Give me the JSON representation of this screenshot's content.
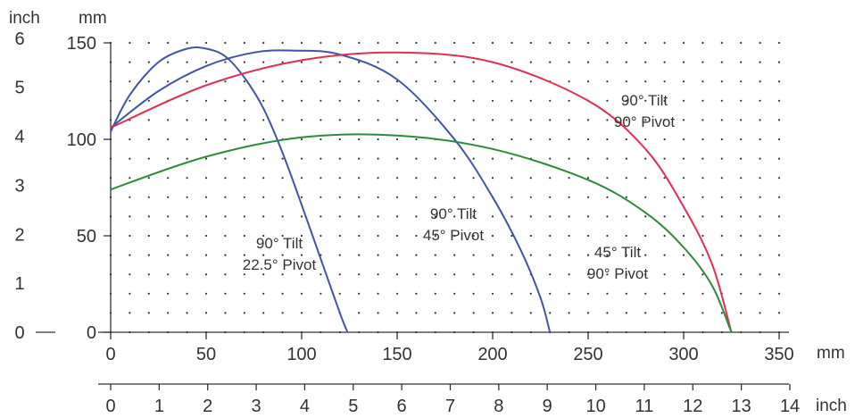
{
  "chart_data": {
    "type": "line",
    "grid": "dotted",
    "axes": {
      "y_inch": {
        "label": "inch",
        "ticks": [
          0,
          1,
          2,
          3,
          4,
          5,
          6
        ],
        "range": [
          0,
          6
        ]
      },
      "y_mm": {
        "label": "mm",
        "ticks": [
          0,
          50,
          100,
          150
        ],
        "range": [
          0,
          150
        ]
      },
      "x_mm": {
        "label": "mm",
        "ticks": [
          0,
          50,
          100,
          150,
          200,
          250,
          300,
          350
        ],
        "range": [
          0,
          350
        ]
      },
      "x_inch": {
        "label": "inch",
        "ticks": [
          0,
          1,
          2,
          3,
          4,
          5,
          6,
          7,
          8,
          9,
          10,
          11,
          12,
          13,
          14
        ],
        "range": [
          0,
          14
        ]
      }
    },
    "series": [
      {
        "label_lines": [
          "90° Tilt",
          "22.5° Pivot"
        ],
        "color": "#4055a8",
        "x_mm": [
          0,
          10,
          25,
          40,
          50,
          60,
          70,
          80,
          90,
          100,
          110,
          120,
          124
        ],
        "y_mm": [
          104,
          123,
          140,
          147,
          147,
          143,
          132,
          116,
          93,
          66,
          38,
          10,
          0
        ]
      },
      {
        "label_lines": [
          "90° Tilt",
          "45° Pivot"
        ],
        "color": "#4055a8",
        "x_mm": [
          0,
          25,
          50,
          75,
          95,
          120,
          150,
          180,
          200,
          215,
          225,
          230
        ],
        "y_mm": [
          106,
          125,
          138,
          145,
          146,
          144,
          131,
          100,
          70,
          42,
          18,
          0
        ]
      },
      {
        "label_lines": [
          "90° Tilt",
          "90° Pivot"
        ],
        "color": "#e03050",
        "x_mm": [
          0,
          50,
          100,
          150,
          200,
          250,
          280,
          300,
          315,
          325
        ],
        "y_mm": [
          106,
          128,
          141,
          145,
          140,
          120,
          95,
          65,
          35,
          0
        ]
      },
      {
        "label_lines": [
          "45° Tilt",
          "90° Pivot"
        ],
        "color": "#2e8b3a",
        "x_mm": [
          0,
          50,
          100,
          150,
          200,
          250,
          280,
          300,
          315,
          325
        ],
        "y_mm": [
          74,
          91,
          101,
          102,
          95,
          79,
          62,
          44,
          24,
          0
        ]
      }
    ]
  }
}
